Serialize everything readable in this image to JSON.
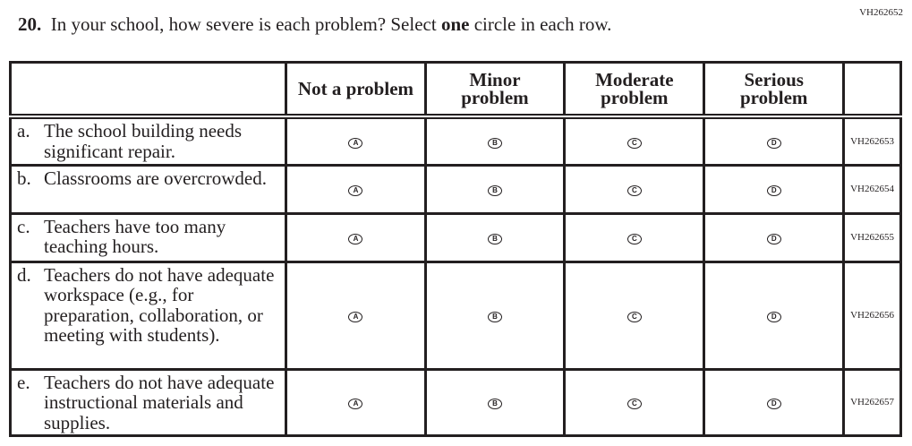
{
  "question_id": "VH262652",
  "question": {
    "number": "20.",
    "text_before": "In your school, how severe is each problem? Select",
    "emphasis": "one",
    "text_after": "circle in each row."
  },
  "columns": [
    "",
    "Not a problem",
    "Minor problem",
    "Moderate problem",
    "Serious problem",
    ""
  ],
  "options": [
    "A",
    "B",
    "C",
    "D"
  ],
  "rows": [
    {
      "letter": "a.",
      "text": "The school building needs significant repair.",
      "code": "VH262653"
    },
    {
      "letter": "b.",
      "text": "Classrooms are overcrowded.",
      "code": "VH262654"
    },
    {
      "letter": "c.",
      "text": "Teachers have too many teaching hours.",
      "code": "VH262655"
    },
    {
      "letter": "d.",
      "text": "Teachers do not have adequate workspace (e.g., for preparation, collaboration, or meeting with students).",
      "code": "VH262656"
    },
    {
      "letter": "e.",
      "text": "Teachers do not have adequate instructional materials and supplies.",
      "code": "VH262657"
    }
  ]
}
